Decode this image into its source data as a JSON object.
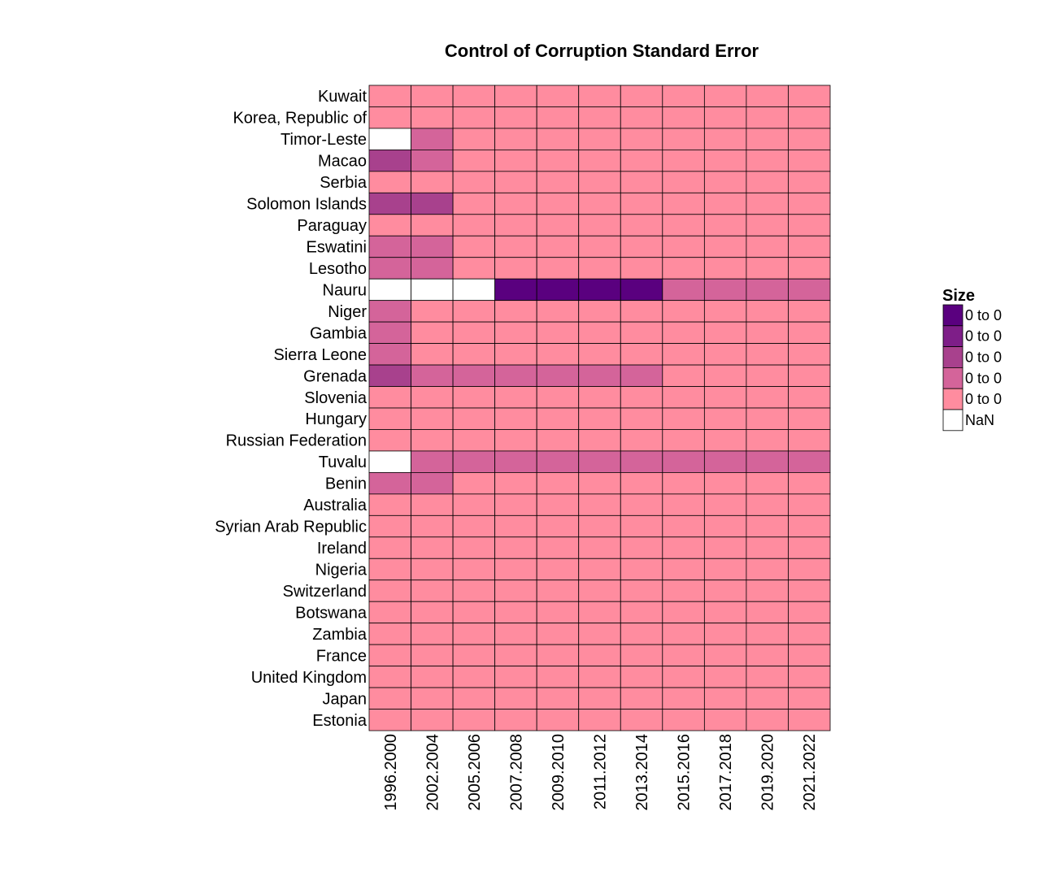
{
  "chart_data": {
    "type": "heatmap",
    "title": "Control of Corruption Standard Error",
    "x": [
      "1996.2000",
      "2002.2004",
      "2005.2006",
      "2007.2008",
      "2009.2010",
      "2011.2012",
      "2013.2014",
      "2015.2016",
      "2017.2018",
      "2019.2020",
      "2021.2022"
    ],
    "y": [
      "Kuwait",
      "Korea, Republic of",
      "Timor-Leste",
      "Macao",
      "Serbia",
      "Solomon Islands",
      "Paraguay",
      "Eswatini",
      "Lesotho",
      "Nauru",
      "Niger",
      "Gambia",
      "Sierra Leone",
      "Grenada",
      "Slovenia",
      "Hungary",
      "Russian Federation",
      "Tuvalu",
      "Benin",
      "Australia",
      "Syrian Arab Republic",
      "Ireland",
      "Nigeria",
      "Switzerland",
      "Botswana",
      "Zambia",
      "France",
      "United Kingdom",
      "Japan",
      "Estonia"
    ],
    "bins": [
      {
        "label": "0 to 0",
        "color": "#5a007f"
      },
      {
        "label": "0 to 0",
        "color": "#7e1e88"
      },
      {
        "label": "0 to 0",
        "color": "#a8418d"
      },
      {
        "label": "0 to 0",
        "color": "#d4649a"
      },
      {
        "label": "0 to 0",
        "color": "#ff8c9f"
      },
      {
        "label": "NaN",
        "color": "#ffffff"
      }
    ],
    "values": [
      [
        4,
        4,
        4,
        4,
        4,
        4,
        4,
        4,
        4,
        4,
        4
      ],
      [
        4,
        4,
        4,
        4,
        4,
        4,
        4,
        4,
        4,
        4,
        4
      ],
      [
        5,
        3,
        4,
        4,
        4,
        4,
        4,
        4,
        4,
        4,
        4
      ],
      [
        2,
        3,
        4,
        4,
        4,
        4,
        4,
        4,
        4,
        4,
        4
      ],
      [
        4,
        4,
        4,
        4,
        4,
        4,
        4,
        4,
        4,
        4,
        4
      ],
      [
        2,
        2,
        4,
        4,
        4,
        4,
        4,
        4,
        4,
        4,
        4
      ],
      [
        4,
        4,
        4,
        4,
        4,
        4,
        4,
        4,
        4,
        4,
        4
      ],
      [
        3,
        3,
        4,
        4,
        4,
        4,
        4,
        4,
        4,
        4,
        4
      ],
      [
        3,
        3,
        4,
        4,
        4,
        4,
        4,
        4,
        4,
        4,
        4
      ],
      [
        5,
        5,
        5,
        0,
        0,
        0,
        0,
        3,
        3,
        3,
        3
      ],
      [
        3,
        4,
        4,
        4,
        4,
        4,
        4,
        4,
        4,
        4,
        4
      ],
      [
        3,
        4,
        4,
        4,
        4,
        4,
        4,
        4,
        4,
        4,
        4
      ],
      [
        3,
        4,
        4,
        4,
        4,
        4,
        4,
        4,
        4,
        4,
        4
      ],
      [
        2,
        3,
        3,
        3,
        3,
        3,
        3,
        4,
        4,
        4,
        4
      ],
      [
        4,
        4,
        4,
        4,
        4,
        4,
        4,
        4,
        4,
        4,
        4
      ],
      [
        4,
        4,
        4,
        4,
        4,
        4,
        4,
        4,
        4,
        4,
        4
      ],
      [
        4,
        4,
        4,
        4,
        4,
        4,
        4,
        4,
        4,
        4,
        4
      ],
      [
        5,
        3,
        3,
        3,
        3,
        3,
        3,
        3,
        3,
        3,
        3
      ],
      [
        3,
        3,
        4,
        4,
        4,
        4,
        4,
        4,
        4,
        4,
        4
      ],
      [
        4,
        4,
        4,
        4,
        4,
        4,
        4,
        4,
        4,
        4,
        4
      ],
      [
        4,
        4,
        4,
        4,
        4,
        4,
        4,
        4,
        4,
        4,
        4
      ],
      [
        4,
        4,
        4,
        4,
        4,
        4,
        4,
        4,
        4,
        4,
        4
      ],
      [
        4,
        4,
        4,
        4,
        4,
        4,
        4,
        4,
        4,
        4,
        4
      ],
      [
        4,
        4,
        4,
        4,
        4,
        4,
        4,
        4,
        4,
        4,
        4
      ],
      [
        4,
        4,
        4,
        4,
        4,
        4,
        4,
        4,
        4,
        4,
        4
      ],
      [
        4,
        4,
        4,
        4,
        4,
        4,
        4,
        4,
        4,
        4,
        4
      ],
      [
        4,
        4,
        4,
        4,
        4,
        4,
        4,
        4,
        4,
        4,
        4
      ],
      [
        4,
        4,
        4,
        4,
        4,
        4,
        4,
        4,
        4,
        4,
        4
      ],
      [
        4,
        4,
        4,
        4,
        4,
        4,
        4,
        4,
        4,
        4,
        4
      ],
      [
        4,
        4,
        4,
        4,
        4,
        4,
        4,
        4,
        4,
        4,
        4
      ]
    ],
    "legend": {
      "title": "Size",
      "placement": "right"
    }
  }
}
